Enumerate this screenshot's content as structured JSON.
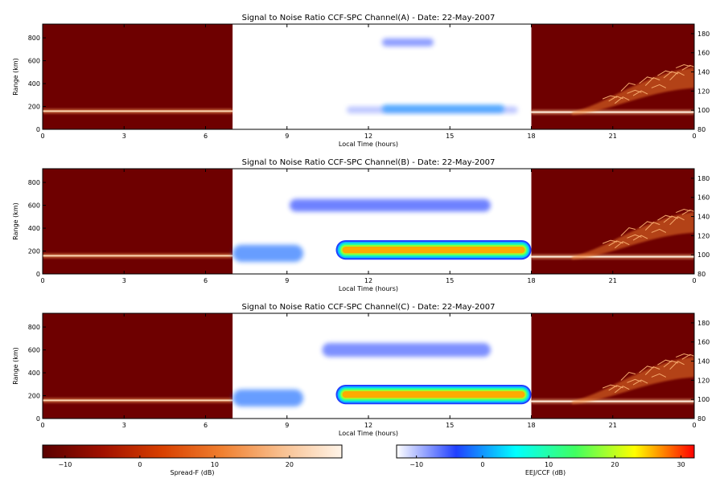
{
  "chart_data": [
    {
      "type": "heatmap",
      "title": "Signal to Noise Ratio CCF-SPC Channel(A) - Date: 22-May-2007",
      "xlabel": "Local Time (hours)",
      "ylabel": "Range (km)",
      "xlim": [
        0,
        24
      ],
      "x_ticks": [
        "0",
        "3",
        "6",
        "9",
        "12",
        "15",
        "18",
        "21",
        "0"
      ],
      "ylim": [
        0,
        920
      ],
      "y_ticks": [
        "0",
        "200",
        "400",
        "600",
        "800"
      ],
      "y2lim": [
        80,
        190
      ],
      "y2_ticks": [
        "80",
        "100",
        "120",
        "140",
        "160",
        "180"
      ],
      "panels": [
        {
          "colormap": "spread-f",
          "x_range": [
            0,
            7
          ],
          "background": "#6e0000",
          "features": [
            {
              "kind": "layer-line",
              "x_start": 0,
              "x_end": 7,
              "y2": 99,
              "level_db": 14
            }
          ]
        },
        {
          "colormap": "eej-ccf",
          "x_range": [
            7,
            18
          ],
          "background": "#ffffff",
          "features": [
            {
              "kind": "echo-band",
              "x_start": 12.5,
              "x_end": 14.4,
              "y": 760,
              "thickness": 70,
              "level_db": -6
            },
            {
              "kind": "echo-band",
              "x_start": 11.2,
              "x_end": 17.5,
              "y": 170,
              "thickness": 60,
              "level_db": -9
            },
            {
              "kind": "echo-band",
              "x_start": 12.5,
              "x_end": 17.0,
              "y": 180,
              "thickness": 70,
              "level_db": 0
            }
          ]
        },
        {
          "colormap": "spread-f",
          "x_range": [
            18,
            24
          ],
          "background": "#6e0000",
          "features": [
            {
              "kind": "layer-line",
              "x_start": 18,
              "x_end": 24,
              "y2": 98,
              "level_db": 18
            },
            {
              "kind": "plume",
              "x_start": 19.5,
              "x_end": 24,
              "y2_low": 100,
              "y2_high": 145,
              "level_db": 10
            }
          ]
        }
      ]
    },
    {
      "type": "heatmap",
      "title": "Signal to Noise Ratio CCF-SPC Channel(B) - Date: 22-May-2007",
      "xlabel": "Local Time (hours)",
      "ylabel": "Range (km)",
      "xlim": [
        0,
        24
      ],
      "x_ticks": [
        "0",
        "3",
        "6",
        "9",
        "12",
        "15",
        "18",
        "21",
        "0"
      ],
      "ylim": [
        0,
        920
      ],
      "y_ticks": [
        "0",
        "200",
        "400",
        "600",
        "800"
      ],
      "y2lim": [
        80,
        190
      ],
      "y2_ticks": [
        "80",
        "100",
        "120",
        "140",
        "160",
        "180"
      ],
      "panels": [
        {
          "colormap": "spread-f",
          "x_range": [
            0,
            7
          ],
          "background": "#6e0000",
          "features": [
            {
              "kind": "layer-line",
              "x_start": 0,
              "x_end": 7,
              "y2": 99,
              "level_db": 14
            }
          ]
        },
        {
          "colormap": "eej-ccf",
          "x_range": [
            7,
            18
          ],
          "background": "#ffffff",
          "features": [
            {
              "kind": "echo-band",
              "x_start": 9.1,
              "x_end": 16.5,
              "y": 600,
              "thickness": 110,
              "level_db": -4
            },
            {
              "kind": "echo-band",
              "x_start": 7.0,
              "x_end": 9.6,
              "y": 180,
              "thickness": 150,
              "level_db": -2
            },
            {
              "kind": "echo-band",
              "x_start": 10.8,
              "x_end": 18.0,
              "y": 210,
              "thickness": 170,
              "level_db": 30
            }
          ]
        },
        {
          "colormap": "spread-f",
          "x_range": [
            18,
            24
          ],
          "background": "#6e0000",
          "features": [
            {
              "kind": "layer-line",
              "x_start": 18,
              "x_end": 24,
              "y2": 98,
              "level_db": 18
            },
            {
              "kind": "plume",
              "x_start": 19.5,
              "x_end": 24,
              "y2_low": 100,
              "y2_high": 145,
              "level_db": 10
            }
          ]
        }
      ]
    },
    {
      "type": "heatmap",
      "title": "Signal to Noise Ratio CCF-SPC Channel(C) - Date: 22-May-2007",
      "xlabel": "Local Time (hours)",
      "ylabel": "Range (km)",
      "xlim": [
        0,
        24
      ],
      "x_ticks": [
        "0",
        "3",
        "6",
        "9",
        "12",
        "15",
        "18",
        "21",
        "0"
      ],
      "ylim": [
        0,
        920
      ],
      "y_ticks": [
        "0",
        "200",
        "400",
        "600",
        "800"
      ],
      "y2lim": [
        80,
        190
      ],
      "y2_ticks": [
        "80",
        "100",
        "120",
        "140",
        "160",
        "180"
      ],
      "panels": [
        {
          "colormap": "spread-f",
          "x_range": [
            0,
            7
          ],
          "background": "#6e0000",
          "features": [
            {
              "kind": "layer-line",
              "x_start": 0,
              "x_end": 7,
              "y2": 99,
              "level_db": 14
            }
          ]
        },
        {
          "colormap": "eej-ccf",
          "x_range": [
            7,
            18
          ],
          "background": "#ffffff",
          "features": [
            {
              "kind": "echo-band",
              "x_start": 10.3,
              "x_end": 16.5,
              "y": 600,
              "thickness": 120,
              "level_db": -5
            },
            {
              "kind": "echo-band",
              "x_start": 7.0,
              "x_end": 9.6,
              "y": 180,
              "thickness": 150,
              "level_db": -2
            },
            {
              "kind": "echo-band",
              "x_start": 10.8,
              "x_end": 18.0,
              "y": 210,
              "thickness": 170,
              "level_db": 30
            }
          ]
        },
        {
          "colormap": "spread-f",
          "x_range": [
            18,
            24
          ],
          "background": "#6e0000",
          "features": [
            {
              "kind": "layer-line",
              "x_start": 18,
              "x_end": 24,
              "y2": 98,
              "level_db": 18
            },
            {
              "kind": "plume",
              "x_start": 19.5,
              "x_end": 24,
              "y2_low": 100,
              "y2_high": 145,
              "level_db": 10
            }
          ]
        }
      ]
    }
  ],
  "colorbars": [
    {
      "name": "spread-f",
      "label": "Spread-F (dB)",
      "range": [
        -13,
        27
      ],
      "ticks": [
        -10,
        0,
        10,
        20
      ],
      "tick_labels": [
        "−10",
        "0",
        "10",
        "20"
      ],
      "colors": [
        "#5a0000",
        "#a01000",
        "#d84000",
        "#f08030",
        "#f8c090",
        "#fff4e8"
      ]
    },
    {
      "name": "eej-ccf",
      "label": "EEJ/CCF (dB)",
      "range": [
        -13,
        32
      ],
      "ticks": [
        -10,
        0,
        10,
        20,
        30
      ],
      "tick_labels": [
        "−10",
        "0",
        "10",
        "20",
        "30"
      ],
      "colors": [
        "#ffffff",
        "#2040ff",
        "#00ffff",
        "#40ff60",
        "#ffff00",
        "#ff0000"
      ]
    }
  ]
}
